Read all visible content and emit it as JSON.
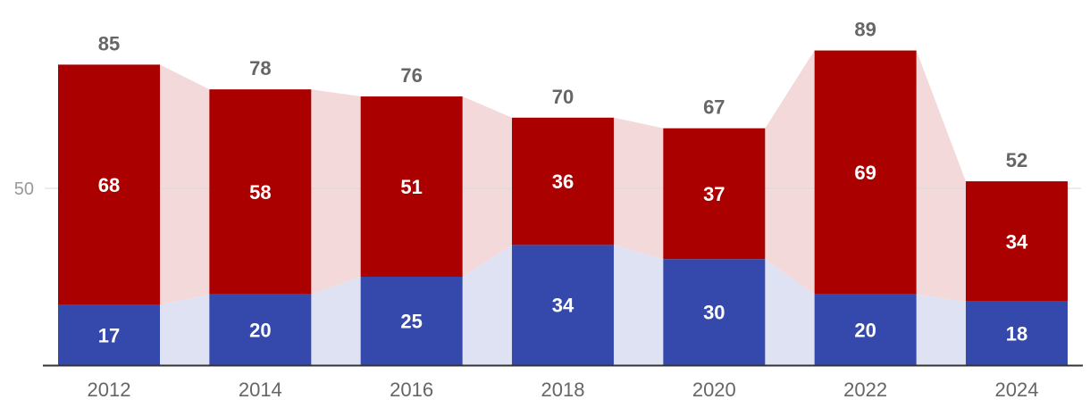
{
  "chart_data": {
    "type": "bar",
    "stacked": true,
    "categories": [
      "2012",
      "2014",
      "2016",
      "2018",
      "2020",
      "2022",
      "2024"
    ],
    "series": [
      {
        "key": "bottom",
        "color": "#3449AB",
        "band_color": "#DFE2F3",
        "values": [
          17,
          20,
          25,
          34,
          30,
          20,
          18
        ]
      },
      {
        "key": "top",
        "color": "#AB0000",
        "band_color": "#F4D9DA",
        "values": [
          68,
          58,
          51,
          36,
          37,
          69,
          34
        ]
      }
    ],
    "totals": [
      85,
      78,
      76,
      70,
      67,
      89,
      52
    ],
    "ylim": [
      0,
      89
    ],
    "yticks": [
      50
    ],
    "grid": true,
    "legend": "none",
    "title": "",
    "xlabel": "",
    "ylabel": ""
  }
}
